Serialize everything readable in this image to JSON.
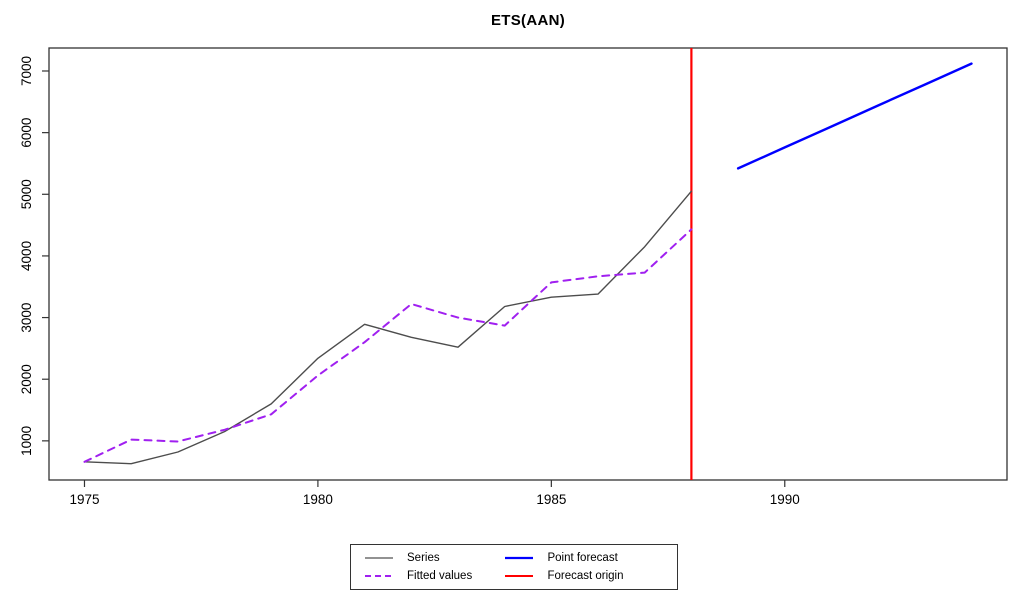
{
  "chart_data": {
    "type": "line",
    "title": "ETS(AAN)",
    "xlabel": "",
    "ylabel": "",
    "x_ticks": [
      1975,
      1980,
      1985,
      1990
    ],
    "y_ticks": [
      1000,
      2000,
      3000,
      4000,
      5000,
      6000,
      7000
    ],
    "xlim": [
      1974.24,
      1994.76
    ],
    "ylim": [
      365,
      7373
    ],
    "grid": false,
    "forecast_origin_x": 1988,
    "series": [
      {
        "name": "Series",
        "color": "#4d4d4d",
        "style": "solid",
        "x": [
          1975,
          1976,
          1977,
          1978,
          1979,
          1980,
          1981,
          1982,
          1983,
          1984,
          1985,
          1986,
          1987,
          1988
        ],
        "values": [
          660,
          630,
          820,
          1150,
          1600,
          2340,
          2890,
          2680,
          2520,
          3180,
          3330,
          3380,
          4150,
          5050
        ]
      },
      {
        "name": "Fitted values",
        "color": "#A020F0",
        "style": "dashed",
        "x": [
          1975,
          1976,
          1977,
          1978,
          1979,
          1980,
          1981,
          1982,
          1983,
          1984,
          1985,
          1986,
          1987,
          1988
        ],
        "values": [
          660,
          1020,
          990,
          1180,
          1430,
          2060,
          2600,
          3220,
          3000,
          2870,
          3570,
          3670,
          3730,
          4430
        ]
      },
      {
        "name": "Point forecast",
        "color": "#0000FF",
        "style": "solid",
        "x": [
          1989,
          1990,
          1991,
          1992,
          1993,
          1994
        ],
        "values": [
          5420,
          5760,
          6100,
          6440,
          6780,
          7120
        ]
      }
    ],
    "forecast_origin_color": "#FF0000",
    "legend": {
      "position": "bottom-center",
      "items": [
        {
          "label": "Series",
          "color": "#6e6e6e",
          "dash": "solid"
        },
        {
          "label": "Fitted values",
          "color": "#A020F0",
          "dash": "dashed"
        },
        {
          "label": "Point forecast",
          "color": "#0000FF",
          "dash": "solid"
        },
        {
          "label": "Forecast origin",
          "color": "#FF0000",
          "dash": "solid"
        }
      ]
    }
  }
}
